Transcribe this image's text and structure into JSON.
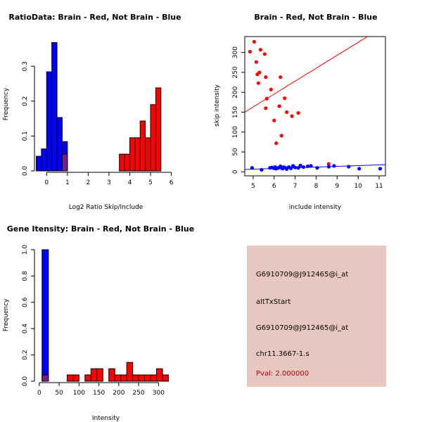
{
  "colors": {
    "brain": "#ff0000",
    "not_brain": "#0000ff",
    "overlap": "#7a1f8a",
    "info_bg": "#e6c8c0",
    "pval_text": "#b00000"
  },
  "chart_data": [
    {
      "id": "ratio",
      "type": "bar",
      "title": "RatioData: Brain - Red, Not Brain - Blue",
      "xlabel": "Log2 Ratio Skip/Include",
      "ylabel": "Frequency",
      "xlim": [
        -0.45,
        6.15
      ],
      "ylim": [
        0,
        0.385
      ],
      "xticks": [
        0,
        1,
        2,
        3,
        4,
        5,
        6
      ],
      "yticks": [
        0.0,
        0.1,
        0.2,
        0.3
      ],
      "ytick_labels": [
        "0.0",
        "0.1",
        "0.2",
        "0.3"
      ],
      "series": [
        {
          "name": "Not Brain",
          "color": "blue",
          "bins": [
            [
              -0.5,
              -0.25,
              0.042
            ],
            [
              -0.25,
              0,
              0.063
            ],
            [
              0,
              0.25,
              0.284
            ],
            [
              0.25,
              0.5,
              0.368
            ],
            [
              0.5,
              0.75,
              0.153
            ],
            [
              0.75,
              1.0,
              0.084
            ],
            [
              1.0,
              1.25,
              0.0
            ],
            [
              1.25,
              1.5,
              0.0
            ]
          ]
        },
        {
          "name": "Brain",
          "color": "red",
          "bins": [
            [
              0.75,
              1.0,
              0.048
            ],
            [
              3.5,
              3.75,
              0.048
            ],
            [
              3.75,
              4.0,
              0.048
            ],
            [
              4.0,
              4.25,
              0.095
            ],
            [
              4.25,
              4.5,
              0.095
            ],
            [
              4.5,
              4.75,
              0.143
            ],
            [
              4.75,
              5.0,
              0.095
            ],
            [
              5.0,
              5.25,
              0.19
            ],
            [
              5.25,
              5.5,
              0.238
            ]
          ]
        }
      ]
    },
    {
      "id": "scatter",
      "type": "scatter",
      "title": "Brain - Red, Not Brain - Blue",
      "xlabel": "include intensity",
      "ylabel": "skip intensity",
      "xlim": [
        4.6,
        11.3
      ],
      "ylim": [
        -10,
        340
      ],
      "xticks": [
        5,
        6,
        7,
        8,
        9,
        10,
        11
      ],
      "yticks": [
        0,
        50,
        100,
        150,
        200,
        250,
        300
      ],
      "series": [
        {
          "name": "Brain",
          "color": "red",
          "points": [
            [
              4.85,
              302
            ],
            [
              5.05,
              327
            ],
            [
              5.15,
              276
            ],
            [
              5.2,
              245
            ],
            [
              5.25,
              223
            ],
            [
              5.3,
              250
            ],
            [
              5.35,
              307
            ],
            [
              5.55,
              296
            ],
            [
              5.6,
              238
            ],
            [
              5.6,
              160
            ],
            [
              5.65,
              184
            ],
            [
              5.85,
              207
            ],
            [
              6.0,
              129
            ],
            [
              6.1,
              72
            ],
            [
              6.25,
              165
            ],
            [
              6.3,
              238
            ],
            [
              6.35,
              91
            ],
            [
              6.5,
              185
            ],
            [
              6.6,
              150
            ],
            [
              6.85,
              140
            ],
            [
              7.15,
              148
            ],
            [
              8.6,
              20
            ]
          ]
        },
        {
          "name": "Not Brain",
          "color": "blue",
          "points": [
            [
              4.95,
              10
            ],
            [
              5.4,
              5
            ],
            [
              5.8,
              10
            ],
            [
              5.9,
              11
            ],
            [
              6.0,
              9
            ],
            [
              6.05,
              12
            ],
            [
              6.1,
              8
            ],
            [
              6.2,
              10
            ],
            [
              6.3,
              14
            ],
            [
              6.35,
              10
            ],
            [
              6.4,
              8
            ],
            [
              6.45,
              12
            ],
            [
              6.55,
              10
            ],
            [
              6.6,
              7
            ],
            [
              6.7,
              12
            ],
            [
              6.8,
              9
            ],
            [
              6.9,
              15
            ],
            [
              7.0,
              11
            ],
            [
              7.15,
              10
            ],
            [
              7.25,
              16
            ],
            [
              7.4,
              12
            ],
            [
              7.6,
              14
            ],
            [
              7.75,
              15
            ],
            [
              8.05,
              10
            ],
            [
              8.6,
              13
            ],
            [
              8.85,
              15
            ],
            [
              9.55,
              13
            ],
            [
              10.05,
              8
            ],
            [
              11.05,
              8
            ]
          ]
        }
      ],
      "fit_lines": [
        {
          "name": "Brain",
          "color": "red",
          "from": [
            4.6,
            150
          ],
          "to": [
            10.45,
            340
          ]
        },
        {
          "name": "Not Brain",
          "color": "blue",
          "from": [
            4.6,
            6
          ],
          "to": [
            11.3,
            18
          ]
        }
      ]
    },
    {
      "id": "intensity",
      "type": "bar",
      "title": "Gene Itensity: Brain - Red, Not Brain - Blue",
      "xlabel": "Intensity",
      "ylabel": "Frequency",
      "xlim": [
        -5,
        340
      ],
      "ylim": [
        0,
        1.0
      ],
      "xticks": [
        0,
        50,
        100,
        150,
        200,
        250,
        300
      ],
      "yticks": [
        0.0,
        0.2,
        0.4,
        0.6,
        0.8,
        1.0
      ],
      "ytick_labels": [
        "0.0",
        "0.2",
        "0.4",
        "0.6",
        "0.8",
        "1.0"
      ],
      "series": [
        {
          "name": "Not Brain",
          "color": "blue",
          "bins": [
            [
              7,
              23,
              1.0
            ]
          ]
        },
        {
          "name": "Brain",
          "color": "red",
          "bins": [
            [
              7,
              23,
              0.048
            ],
            [
              70,
              85,
              0.048
            ],
            [
              85,
              100,
              0.048
            ],
            [
              115,
              130,
              0.048
            ],
            [
              130,
              145,
              0.095
            ],
            [
              145,
              160,
              0.095
            ],
            [
              175,
              190,
              0.095
            ],
            [
              190,
              205,
              0.048
            ],
            [
              205,
              220,
              0.048
            ],
            [
              220,
              235,
              0.143
            ],
            [
              235,
              250,
              0.048
            ],
            [
              250,
              265,
              0.048
            ],
            [
              265,
              280,
              0.048
            ],
            [
              280,
              295,
              0.048
            ],
            [
              295,
              310,
              0.095
            ],
            [
              310,
              325,
              0.048
            ]
          ]
        }
      ]
    }
  ],
  "info": {
    "probe": "G6910709@J912465@i_at",
    "event_type": "altTxStart",
    "probe_repeat": "G6910709@J912465@i_at",
    "location": "chr11.3667-1.s",
    "pval": "Pval: 2.000000"
  }
}
